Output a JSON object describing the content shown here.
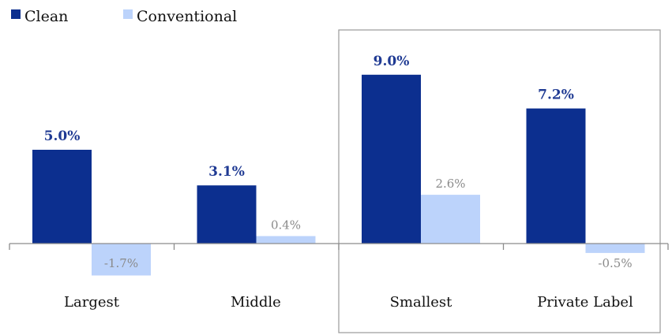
{
  "chart_data": {
    "type": "bar",
    "title": "",
    "xlabel": "",
    "ylabel": "",
    "categories": [
      "Largest",
      "Middle",
      "Smallest",
      "Private Label"
    ],
    "series": [
      {
        "name": "Clean",
        "values": [
          5.0,
          3.1,
          9.0,
          7.2
        ],
        "labels": [
          "5.0%",
          "3.1%",
          "9.0%",
          "7.2%"
        ],
        "color": "#0c2f8f"
      },
      {
        "name": "Conventional",
        "values": [
          -1.7,
          0.4,
          2.6,
          -0.5
        ],
        "labels": [
          "-1.7%",
          "0.4%",
          "2.6%",
          "-0.5%"
        ],
        "color": "#bcd3fb"
      }
    ],
    "ylim": [
      -2,
      10
    ],
    "grid": false,
    "legend": "top-left",
    "highlight_categories": [
      "Smallest",
      "Private Label"
    ],
    "clean_label_color": "#1f3a93",
    "conventional_label_color": "#8a8a8a"
  }
}
